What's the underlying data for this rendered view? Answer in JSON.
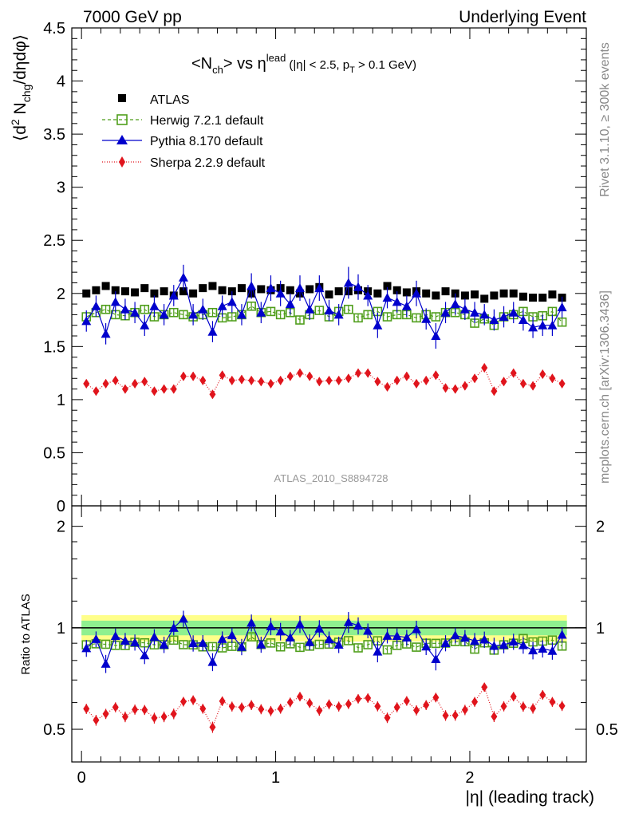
{
  "header": {
    "left_label": "7000 GeV pp",
    "right_label": "Underlying Event"
  },
  "side_labels": {
    "rivet": "Rivet 3.1.10, ≥ 300k events",
    "mcplots": "mcplots.cern.ch [arXiv:1306.3436]"
  },
  "chart_data": [
    {
      "type": "scatter",
      "title": "<Nch> vs η^lead (|η| < 2.5, pT > 0.1 GeV)",
      "title_parts": {
        "lt": "<N",
        "ch": "ch",
        "gt_vs": "> vs η",
        "lead": "lead",
        "cuts_a": "(|η| < 2.5, p",
        "t": "T",
        "cuts_b": " > 0.1 GeV)"
      },
      "ylabel_parts": {
        "open": "⟨d",
        "two": "2",
        "n": " N",
        "chg": "chg",
        "rest": "/dηdφ⟩"
      },
      "xlabel": "",
      "ylim": [
        0,
        4.5
      ],
      "yticks": [
        0,
        0.5,
        1,
        1.5,
        2,
        2.5,
        3,
        3.5,
        4,
        4.5
      ],
      "ytick_labels": [
        "0",
        "0.5",
        "1",
        "1.5",
        "2",
        "2.5",
        "3",
        "3.5",
        "4",
        "4.5"
      ],
      "watermark": "ATLAS_2010_S8894728",
      "legend_position": "top-left",
      "x": [
        0.025,
        0.075,
        0.125,
        0.175,
        0.225,
        0.275,
        0.325,
        0.375,
        0.425,
        0.475,
        0.525,
        0.575,
        0.625,
        0.675,
        0.725,
        0.775,
        0.825,
        0.875,
        0.925,
        0.975,
        1.025,
        1.075,
        1.125,
        1.175,
        1.225,
        1.275,
        1.325,
        1.375,
        1.425,
        1.475,
        1.525,
        1.575,
        1.625,
        1.675,
        1.725,
        1.775,
        1.825,
        1.875,
        1.925,
        1.975,
        2.025,
        2.075,
        2.125,
        2.175,
        2.225,
        2.275,
        2.325,
        2.375,
        2.425,
        2.475
      ],
      "series": [
        {
          "name": "ATLAS",
          "color": "#000000",
          "marker": "square-filled",
          "values": [
            2.0,
            2.03,
            2.07,
            2.03,
            2.02,
            2.01,
            2.05,
            2.0,
            2.02,
            1.98,
            2.02,
            2.0,
            2.05,
            2.07,
            2.03,
            2.02,
            2.05,
            2.0,
            2.04,
            2.03,
            2.05,
            2.03,
            2.0,
            2.04,
            2.06,
            1.99,
            2.02,
            2.02,
            2.03,
            2.02,
            2.0,
            2.07,
            2.03,
            2.01,
            2.02,
            2.0,
            1.98,
            2.02,
            2.0,
            1.98,
            1.99,
            1.95,
            1.98,
            2.0,
            2.0,
            1.97,
            1.96,
            1.96,
            1.99,
            1.96
          ],
          "errors": [
            0.03,
            0.03,
            0.03,
            0.03,
            0.03,
            0.03,
            0.03,
            0.03,
            0.03,
            0.03,
            0.03,
            0.03,
            0.03,
            0.03,
            0.03,
            0.03,
            0.03,
            0.03,
            0.03,
            0.03,
            0.03,
            0.03,
            0.03,
            0.03,
            0.03,
            0.03,
            0.03,
            0.03,
            0.03,
            0.03,
            0.03,
            0.03,
            0.03,
            0.03,
            0.03,
            0.03,
            0.03,
            0.03,
            0.03,
            0.03,
            0.03,
            0.03,
            0.03,
            0.03,
            0.03,
            0.03,
            0.03,
            0.03,
            0.03,
            0.03
          ]
        },
        {
          "name": "Herwig 7.2.1 default",
          "color": "#4f9e1b",
          "marker": "square-open",
          "line": "dashed",
          "values": [
            1.78,
            1.82,
            1.85,
            1.8,
            1.79,
            1.82,
            1.85,
            1.78,
            1.8,
            1.82,
            1.8,
            1.78,
            1.8,
            1.82,
            1.77,
            1.78,
            1.8,
            1.88,
            1.82,
            1.83,
            1.8,
            1.82,
            1.75,
            1.8,
            1.84,
            1.78,
            1.83,
            1.85,
            1.77,
            1.8,
            1.83,
            1.78,
            1.8,
            1.8,
            1.77,
            1.8,
            1.78,
            1.82,
            1.82,
            1.8,
            1.72,
            1.76,
            1.7,
            1.78,
            1.8,
            1.83,
            1.78,
            1.79,
            1.83,
            1.73
          ],
          "errors": [
            0.04,
            0.04,
            0.04,
            0.04,
            0.04,
            0.04,
            0.04,
            0.04,
            0.04,
            0.04,
            0.04,
            0.04,
            0.04,
            0.04,
            0.04,
            0.04,
            0.04,
            0.04,
            0.04,
            0.04,
            0.04,
            0.04,
            0.04,
            0.04,
            0.04,
            0.04,
            0.04,
            0.04,
            0.04,
            0.04,
            0.04,
            0.04,
            0.04,
            0.04,
            0.04,
            0.04,
            0.04,
            0.04,
            0.04,
            0.04,
            0.04,
            0.04,
            0.04,
            0.04,
            0.04,
            0.04,
            0.04,
            0.04,
            0.04,
            0.04
          ]
        },
        {
          "name": "Pythia 8.170 default",
          "color": "#0000cc",
          "marker": "triangle-filled",
          "line": "solid",
          "values": [
            1.74,
            1.88,
            1.62,
            1.92,
            1.85,
            1.82,
            1.7,
            1.88,
            1.8,
            1.98,
            2.15,
            1.8,
            1.85,
            1.64,
            1.88,
            1.92,
            1.8,
            2.07,
            1.82,
            2.05,
            2.0,
            1.9,
            2.05,
            1.85,
            2.05,
            1.84,
            1.8,
            2.1,
            2.06,
            1.98,
            1.7,
            1.96,
            1.92,
            1.88,
            2.0,
            1.76,
            1.6,
            1.82,
            1.9,
            1.85,
            1.82,
            1.8,
            1.75,
            1.78,
            1.82,
            1.75,
            1.68,
            1.7,
            1.7,
            1.87
          ],
          "errors": [
            0.1,
            0.1,
            0.1,
            0.1,
            0.1,
            0.1,
            0.1,
            0.1,
            0.1,
            0.1,
            0.12,
            0.1,
            0.1,
            0.1,
            0.1,
            0.1,
            0.1,
            0.12,
            0.1,
            0.12,
            0.12,
            0.1,
            0.12,
            0.1,
            0.12,
            0.1,
            0.1,
            0.15,
            0.12,
            0.1,
            0.12,
            0.1,
            0.1,
            0.1,
            0.12,
            0.1,
            0.12,
            0.1,
            0.1,
            0.1,
            0.1,
            0.1,
            0.1,
            0.1,
            0.1,
            0.1,
            0.1,
            0.1,
            0.1,
            0.1
          ]
        },
        {
          "name": "Sherpa 2.2.9 default",
          "color": "#e0141c",
          "marker": "diamond-filled",
          "line": "dotted",
          "values": [
            1.15,
            1.08,
            1.15,
            1.18,
            1.1,
            1.15,
            1.17,
            1.08,
            1.1,
            1.1,
            1.22,
            1.22,
            1.18,
            1.05,
            1.23,
            1.18,
            1.19,
            1.18,
            1.17,
            1.15,
            1.18,
            1.22,
            1.25,
            1.22,
            1.17,
            1.18,
            1.18,
            1.2,
            1.25,
            1.25,
            1.17,
            1.12,
            1.18,
            1.22,
            1.15,
            1.18,
            1.23,
            1.11,
            1.1,
            1.13,
            1.2,
            1.3,
            1.08,
            1.17,
            1.25,
            1.15,
            1.13,
            1.24,
            1.2,
            1.15
          ],
          "errors": [
            0.04,
            0.04,
            0.04,
            0.04,
            0.04,
            0.04,
            0.04,
            0.04,
            0.04,
            0.04,
            0.04,
            0.04,
            0.04,
            0.04,
            0.04,
            0.04,
            0.04,
            0.04,
            0.04,
            0.04,
            0.04,
            0.04,
            0.04,
            0.04,
            0.04,
            0.04,
            0.04,
            0.04,
            0.04,
            0.04,
            0.04,
            0.04,
            0.04,
            0.04,
            0.04,
            0.04,
            0.04,
            0.04,
            0.04,
            0.04,
            0.04,
            0.04,
            0.04,
            0.04,
            0.04,
            0.04,
            0.04,
            0.04,
            0.04,
            0.04
          ]
        }
      ]
    },
    {
      "type": "scatter",
      "title": "",
      "ylabel": "Ratio to ATLAS",
      "xlabel": "|η| (leading track)",
      "xlim": [
        -0.05,
        2.6
      ],
      "ylim": [
        0.4,
        2.3
      ],
      "y_scale": "log",
      "xticks": [
        0,
        1,
        2
      ],
      "xtick_labels": [
        "0",
        "1",
        "2"
      ],
      "yticks": [
        0.5,
        1,
        2
      ],
      "ytick_labels": [
        "0.5",
        "1",
        "2"
      ],
      "bands": {
        "inner_color": "#8ff08f",
        "outer_color": "#ffff8a",
        "inner_halfwidth": 0.05,
        "outer_halfwidth": 0.09
      },
      "note": "ratio series computed from the upper panel values divided by ATLAS"
    }
  ]
}
